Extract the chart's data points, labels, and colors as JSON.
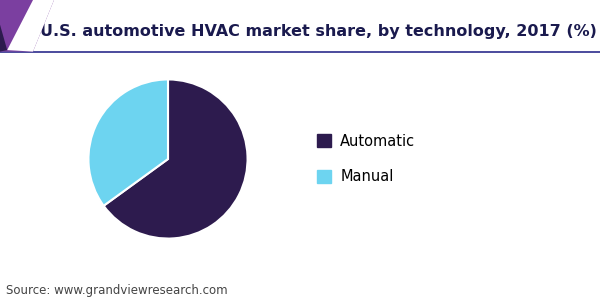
{
  "title": "U.S. automotive HVAC market share, by technology, 2017 (%)",
  "slices": [
    65.0,
    35.0
  ],
  "labels": [
    "Automatic",
    "Manual"
  ],
  "colors": [
    "#2d1b4e",
    "#6dd4f0"
  ],
  "startangle": 90,
  "background_color": "#ffffff",
  "source_text": "Source: www.grandviewresearch.com",
  "title_fontsize": 11.5,
  "legend_fontsize": 10.5,
  "source_fontsize": 8.5,
  "header_line_color": "#2c2c8c",
  "decor_color1": "#7b3fa0",
  "decor_color2": "#2d1b4e",
  "title_color": "#1a1a4e"
}
